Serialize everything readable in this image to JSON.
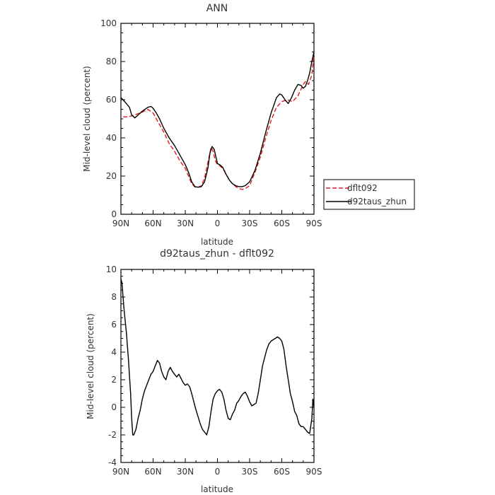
{
  "chart_data": [
    {
      "type": "line",
      "title": "ANN",
      "xlabel": "latitude",
      "ylabel": "Mid-level cloud (percent)",
      "xlim": [
        90,
        -90
      ],
      "ylim": [
        0,
        100
      ],
      "x_ticks": [
        {
          "value": 90,
          "label": "90N"
        },
        {
          "value": 60,
          "label": "60N"
        },
        {
          "value": 30,
          "label": "30N"
        },
        {
          "value": 0,
          "label": "0"
        },
        {
          "value": -30,
          "label": "30S"
        },
        {
          "value": -60,
          "label": "60S"
        },
        {
          "value": -90,
          "label": "90S"
        }
      ],
      "y_ticks": [
        {
          "value": 0,
          "label": "0"
        },
        {
          "value": 20,
          "label": "20"
        },
        {
          "value": 40,
          "label": "40"
        },
        {
          "value": 60,
          "label": "60"
        },
        {
          "value": 80,
          "label": "80"
        },
        {
          "value": 100,
          "label": "100"
        }
      ],
      "legend_position": "outside-right",
      "series": [
        {
          "name": "dflt092",
          "color": "#e41a1c",
          "dash": "dashed",
          "x": [
            88,
            85,
            80,
            75,
            70,
            65,
            60,
            55,
            50,
            45,
            40,
            35,
            30,
            27,
            24,
            21,
            18,
            15,
            12,
            9,
            6,
            4,
            2,
            0,
            -2,
            -5,
            -8,
            -11,
            -14,
            -17,
            -20,
            -23,
            -26,
            -30,
            -35,
            -40,
            -45,
            -50,
            -55,
            -60,
            -65,
            -70,
            -75,
            -80,
            -82,
            -85,
            -88,
            -90
          ],
          "y": [
            51,
            51,
            51.5,
            52.5,
            53.5,
            55,
            53,
            48,
            43,
            37,
            33,
            28,
            24,
            20,
            16,
            14.3,
            14.2,
            15,
            19,
            27,
            35,
            33,
            28,
            26,
            25.5,
            24,
            21,
            18,
            16,
            14.5,
            13.5,
            13,
            13.5,
            15,
            22,
            30,
            40,
            49,
            56,
            59,
            60,
            59,
            62,
            68,
            69.5,
            68,
            73,
            84
          ]
        },
        {
          "name": "d92taus_zhun",
          "color": "#000000",
          "dash": "solid",
          "x": [
            90,
            88,
            85,
            82,
            80,
            77,
            74,
            70,
            65,
            62,
            60,
            57,
            54,
            50,
            45,
            40,
            35,
            30,
            27,
            24,
            21,
            18,
            15,
            12,
            9,
            7,
            5,
            3,
            1,
            0,
            -2,
            -5,
            -8,
            -11,
            -14,
            -17,
            -20,
            -23,
            -26,
            -30,
            -35,
            -40,
            -45,
            -50,
            -55,
            -58,
            -60,
            -63,
            -66,
            -69,
            -72,
            -75,
            -78,
            -80,
            -82,
            -84,
            -86,
            -88,
            -90
          ],
          "y": [
            61,
            60,
            58,
            56,
            52,
            50.5,
            52,
            54,
            56,
            56.5,
            55.5,
            53,
            50,
            45,
            40,
            36,
            31,
            26,
            22,
            17,
            14.5,
            14.2,
            14.5,
            17,
            24,
            32,
            35.5,
            34,
            29,
            26.5,
            26,
            24.5,
            21,
            18,
            16,
            15,
            14.5,
            14.5,
            15,
            17,
            23,
            32,
            43,
            53,
            61,
            63,
            62.5,
            60,
            58,
            61,
            65,
            68,
            67.5,
            66,
            67,
            70,
            74,
            80,
            85
          ]
        }
      ]
    },
    {
      "type": "line",
      "title": "d92taus_zhun - dflt092",
      "xlabel": "latitude",
      "ylabel": "Mid-level cloud (percent)",
      "xlim": [
        90,
        -90
      ],
      "ylim": [
        -4,
        10
      ],
      "x_ticks": [
        {
          "value": 90,
          "label": "90N"
        },
        {
          "value": 60,
          "label": "60N"
        },
        {
          "value": 30,
          "label": "30N"
        },
        {
          "value": 0,
          "label": "0"
        },
        {
          "value": -30,
          "label": "30S"
        },
        {
          "value": -60,
          "label": "60S"
        },
        {
          "value": -90,
          "label": "90S"
        }
      ],
      "y_ticks": [
        {
          "value": -4,
          "label": "-4"
        },
        {
          "value": -2,
          "label": "-2"
        },
        {
          "value": 0,
          "label": "0"
        },
        {
          "value": 2,
          "label": "2"
        },
        {
          "value": 4,
          "label": "4"
        },
        {
          "value": 6,
          "label": "6"
        },
        {
          "value": 8,
          "label": "8"
        },
        {
          "value": 10,
          "label": "10"
        }
      ],
      "series": [
        {
          "color": "#000000",
          "dash": "solid",
          "x": [
            90,
            89,
            88,
            87,
            85,
            83,
            81,
            80,
            79,
            78,
            76,
            74,
            72,
            70,
            68,
            66,
            64,
            62,
            60,
            58,
            56,
            54,
            52,
            50,
            48,
            46,
            44,
            42,
            40,
            38,
            36,
            34,
            32,
            30,
            28,
            26,
            24,
            22,
            20,
            18,
            16,
            14,
            12,
            10,
            8,
            6,
            4,
            2,
            0,
            -2,
            -4,
            -6,
            -8,
            -10,
            -12,
            -14,
            -16,
            -18,
            -20,
            -22,
            -24,
            -26,
            -28,
            -30,
            -32,
            -34,
            -36,
            -38,
            -40,
            -42,
            -44,
            -46,
            -48,
            -50,
            -52,
            -54,
            -56,
            -58,
            -60,
            -62,
            -64,
            -66,
            -68,
            -70,
            -72,
            -74,
            -76,
            -78,
            -80,
            -82,
            -84,
            -86,
            -88,
            -89,
            -90
          ],
          "y": [
            9.3,
            9.0,
            8.0,
            7.0,
            5.5,
            3.5,
            1.0,
            -0.8,
            -2.0,
            -2.0,
            -1.6,
            -0.8,
            -0.2,
            0.6,
            1.2,
            1.6,
            2.0,
            2.4,
            2.6,
            3.0,
            3.4,
            3.2,
            2.6,
            2.2,
            2.0,
            2.6,
            2.9,
            2.6,
            2.4,
            2.2,
            2.4,
            2.1,
            1.8,
            1.6,
            1.7,
            1.5,
            1.0,
            0.4,
            -0.2,
            -0.7,
            -1.2,
            -1.6,
            -1.8,
            -2.0,
            -1.4,
            -0.3,
            0.6,
            1.0,
            1.2,
            1.3,
            1.1,
            0.6,
            -0.2,
            -0.8,
            -0.9,
            -0.5,
            -0.2,
            0.3,
            0.5,
            0.8,
            1.0,
            1.1,
            0.8,
            0.4,
            0.1,
            0.2,
            0.3,
            1.0,
            2.0,
            3.0,
            3.6,
            4.2,
            4.6,
            4.8,
            4.9,
            5.0,
            5.1,
            5.0,
            4.8,
            4.2,
            3.0,
            2.0,
            1.0,
            0.4,
            -0.3,
            -0.6,
            -1.2,
            -1.4,
            -1.4,
            -1.6,
            -1.8,
            -1.9,
            -0.8,
            0.6,
            0.0
          ]
        }
      ]
    }
  ]
}
